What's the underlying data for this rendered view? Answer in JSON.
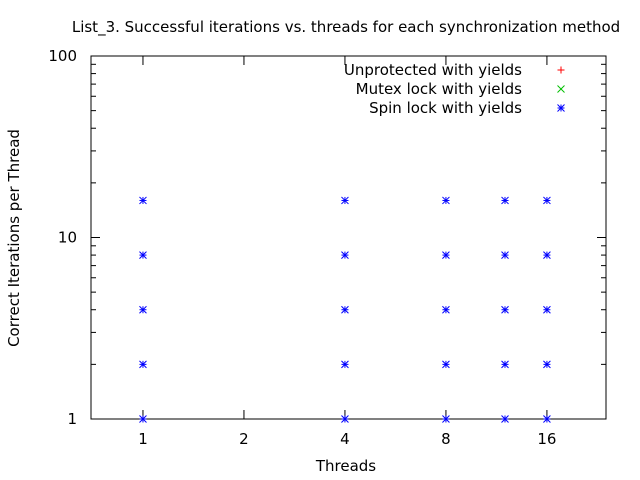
{
  "chart_data": {
    "type": "scatter",
    "title": "List_3. Successful iterations vs. threads for each synchronization method",
    "xlabel": "Threads",
    "ylabel": "Correct Iterations per Thread",
    "xscale": "log2",
    "yscale": "log10",
    "xlim": [
      0.7,
      24
    ],
    "ylim": [
      1,
      100
    ],
    "xticks": [
      1,
      2,
      4,
      8,
      16
    ],
    "yticks": [
      1,
      10,
      100
    ],
    "ytick_labels": [
      "1",
      "10",
      "100"
    ],
    "xtick_labels": [
      "1",
      "2",
      "4",
      "8",
      "16"
    ],
    "grid": false,
    "legend_position": "top-right",
    "series": [
      {
        "name": "Unprotected with yields",
        "marker": "+",
        "color": "#ff0000",
        "points": []
      },
      {
        "name": "Mutex lock with yields",
        "marker": "x",
        "color": "#00c000",
        "points": []
      },
      {
        "name": "Spin lock with yields",
        "marker": "*",
        "color": "#0000ff",
        "points": [
          [
            1,
            1
          ],
          [
            1,
            2
          ],
          [
            1,
            4
          ],
          [
            1,
            8
          ],
          [
            1,
            16
          ],
          [
            4,
            1
          ],
          [
            4,
            2
          ],
          [
            4,
            4
          ],
          [
            4,
            8
          ],
          [
            4,
            16
          ],
          [
            8,
            1
          ],
          [
            8,
            2
          ],
          [
            8,
            4
          ],
          [
            8,
            8
          ],
          [
            8,
            16
          ],
          [
            12,
            1
          ],
          [
            12,
            2
          ],
          [
            12,
            4
          ],
          [
            12,
            8
          ],
          [
            12,
            16
          ],
          [
            16,
            1
          ],
          [
            16,
            2
          ],
          [
            16,
            4
          ],
          [
            16,
            8
          ],
          [
            16,
            16
          ]
        ]
      }
    ]
  }
}
